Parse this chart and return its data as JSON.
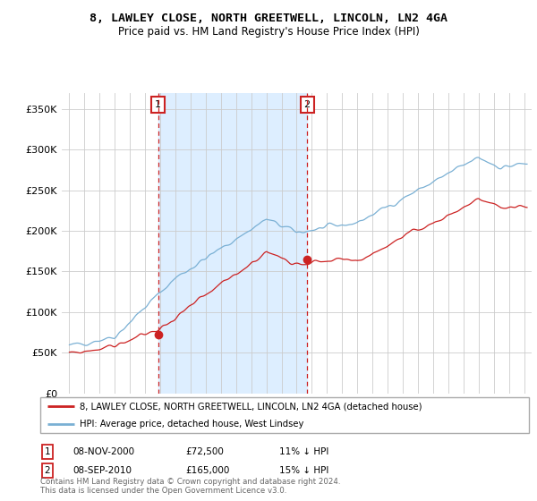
{
  "title": "8, LAWLEY CLOSE, NORTH GREETWELL, LINCOLN, LN2 4GA",
  "subtitle": "Price paid vs. HM Land Registry's House Price Index (HPI)",
  "legend_line1": "8, LAWLEY CLOSE, NORTH GREETWELL, LINCOLN, LN2 4GA (detached house)",
  "legend_line2": "HPI: Average price, detached house, West Lindsey",
  "annotation1_date": "08-NOV-2000",
  "annotation1_price": "£72,500",
  "annotation1_hpi": "11% ↓ HPI",
  "annotation2_date": "08-SEP-2010",
  "annotation2_price": "£165,000",
  "annotation2_hpi": "15% ↓ HPI",
  "footer": "Contains HM Land Registry data © Crown copyright and database right 2024.\nThis data is licensed under the Open Government Licence v3.0.",
  "hpi_color": "#7ab0d4",
  "price_color": "#cc2222",
  "annotation_color": "#cc2222",
  "shade_color": "#ddeeff",
  "ylim": [
    0,
    370000
  ],
  "yticks": [
    0,
    50000,
    100000,
    150000,
    200000,
    250000,
    300000,
    350000
  ],
  "ytick_labels": [
    "£0",
    "£50K",
    "£100K",
    "£150K",
    "£200K",
    "£250K",
    "£300K",
    "£350K"
  ],
  "vline1_x": 2000.85,
  "vline2_x": 2010.69,
  "marker1_x": 2000.85,
  "marker1_y": 72500,
  "marker2_x": 2010.69,
  "marker2_y": 165000,
  "xmin": 1994.5,
  "xmax": 2025.5
}
